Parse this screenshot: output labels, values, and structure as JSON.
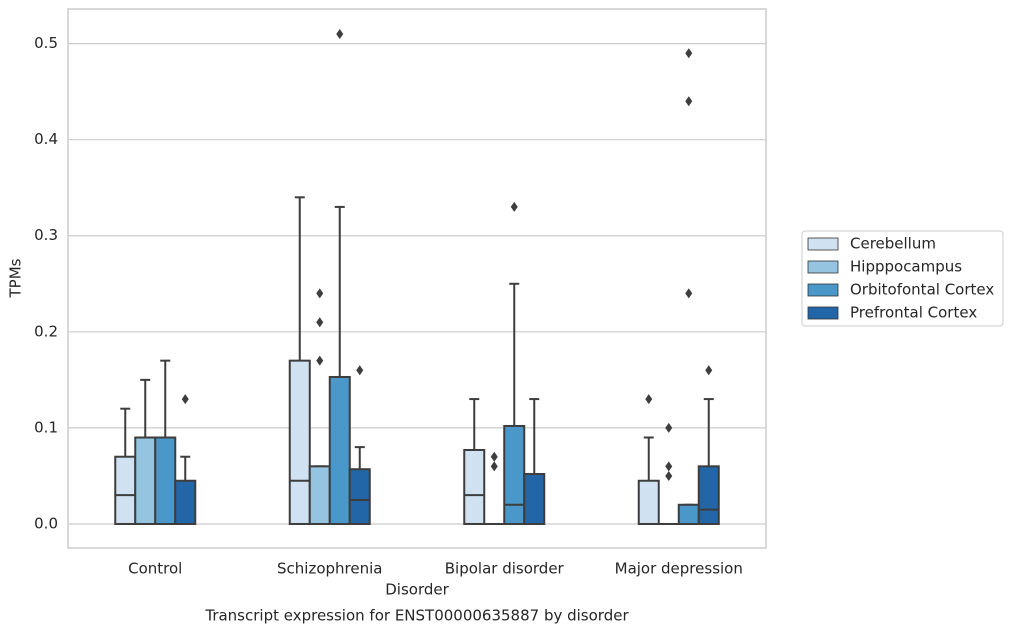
{
  "chart_data": {
    "type": "boxplot",
    "caption": "Transcript expression for ENST00000635887 by disorder",
    "xlabel": "Disorder",
    "ylabel": "TPMs",
    "categories": [
      "Control",
      "Schizophrenia",
      "Bipolar disorder",
      "Major depression"
    ],
    "ylim": [
      -0.025,
      0.536
    ],
    "yticks": [
      {
        "value": 0,
        "label": "0.0"
      },
      0.1,
      0.2,
      0.3,
      0.4,
      0.5
    ],
    "grid": true,
    "legend": "right",
    "series": [
      {
        "name": "Cerebellum",
        "color": "#d0e1f2",
        "boxes": [
          {
            "min": 0,
            "q1": 0,
            "median": 0.03,
            "q3": 0.07,
            "max": 0.12,
            "outliers": []
          },
          {
            "min": 0,
            "q1": 0,
            "median": 0.045,
            "q3": 0.17,
            "max": 0.34,
            "outliers": []
          },
          {
            "min": 0,
            "q1": 0,
            "median": 0.03,
            "q3": 0.077,
            "max": 0.13,
            "outliers": []
          },
          {
            "min": 0,
            "q1": 0,
            "median": 0,
            "q3": 0.045,
            "max": 0.09,
            "outliers": [
              0.13
            ]
          }
        ]
      },
      {
        "name": "Hipppocampus",
        "color": "#94c4df",
        "boxes": [
          {
            "min": 0,
            "q1": 0,
            "median": 0,
            "q3": 0.09,
            "max": 0.15,
            "outliers": []
          },
          {
            "min": 0,
            "q1": 0,
            "median": 0,
            "q3": 0.06,
            "max": 0.06,
            "outliers": [
              0.17,
              0.21,
              0.24
            ]
          },
          {
            "min": 0,
            "q1": 0,
            "median": 0,
            "q3": 0,
            "max": 0,
            "outliers": [
              0.06,
              0.07
            ]
          },
          {
            "min": 0,
            "q1": 0,
            "median": 0,
            "q3": 0,
            "max": 0,
            "outliers": [
              0.05,
              0.06,
              0.1
            ]
          }
        ]
      },
      {
        "name": "Orbitofontal Cortex",
        "color": "#4a98c9",
        "boxes": [
          {
            "min": 0,
            "q1": 0,
            "median": 0,
            "q3": 0.09,
            "max": 0.17,
            "outliers": []
          },
          {
            "min": 0,
            "q1": 0,
            "median": 0,
            "q3": 0.153,
            "max": 0.33,
            "outliers": [
              0.51
            ]
          },
          {
            "min": 0,
            "q1": 0,
            "median": 0.02,
            "q3": 0.102,
            "max": 0.25,
            "outliers": [
              0.33
            ]
          },
          {
            "min": 0,
            "q1": 0,
            "median": 0,
            "q3": 0.02,
            "max": 0.02,
            "outliers": [
              0.24,
              0.44,
              0.49
            ]
          }
        ]
      },
      {
        "name": "Prefrontal Cortex",
        "color": "#2366a8",
        "boxes": [
          {
            "min": 0,
            "q1": 0,
            "median": 0,
            "q3": 0.045,
            "max": 0.07,
            "outliers": [
              0.13
            ]
          },
          {
            "min": 0,
            "q1": 0,
            "median": 0.025,
            "q3": 0.057,
            "max": 0.08,
            "outliers": [
              0.16
            ]
          },
          {
            "min": 0,
            "q1": 0,
            "median": 0,
            "q3": 0.052,
            "max": 0.13,
            "outliers": []
          },
          {
            "min": 0,
            "q1": 0,
            "median": 0.015,
            "q3": 0.06,
            "max": 0.13,
            "outliers": [
              0.16
            ]
          }
        ]
      }
    ]
  }
}
